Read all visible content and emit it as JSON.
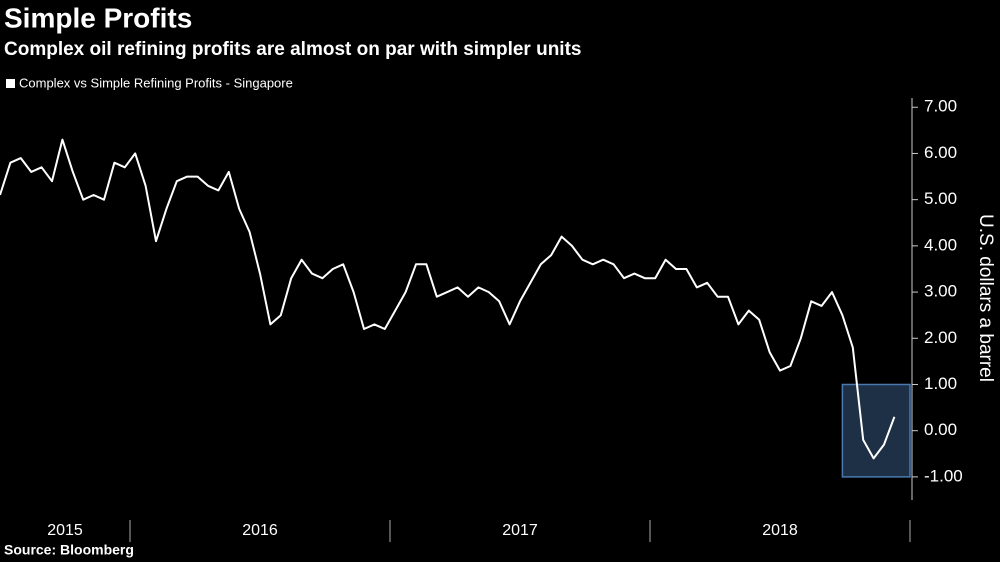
{
  "chart_data": {
    "type": "line",
    "title": "Simple Profits",
    "subtitle": "Complex oil refining profits are almost on par with simpler units",
    "y_label": "U.S. dollars a barrel",
    "source": "Source: Bloomberg",
    "x": [
      2015.5,
      2015.54,
      2015.58,
      2015.62,
      2015.66,
      2015.7,
      2015.74,
      2015.78,
      2015.82,
      2015.86,
      2015.9,
      2015.94,
      2015.98,
      2016.02,
      2016.06,
      2016.1,
      2016.14,
      2016.18,
      2016.22,
      2016.26,
      2016.3,
      2016.34,
      2016.38,
      2016.42,
      2016.46,
      2016.5,
      2016.54,
      2016.58,
      2016.62,
      2016.66,
      2016.7,
      2016.74,
      2016.78,
      2016.82,
      2016.86,
      2016.9,
      2016.94,
      2016.98,
      2017.02,
      2017.06,
      2017.1,
      2017.14,
      2017.18,
      2017.22,
      2017.26,
      2017.3,
      2017.34,
      2017.38,
      2017.42,
      2017.46,
      2017.5,
      2017.54,
      2017.58,
      2017.62,
      2017.66,
      2017.7,
      2017.74,
      2017.78,
      2017.82,
      2017.86,
      2017.9,
      2017.94,
      2017.98,
      2018.02,
      2018.06,
      2018.1,
      2018.14,
      2018.18,
      2018.22,
      2018.26,
      2018.3,
      2018.34,
      2018.38,
      2018.42,
      2018.46,
      2018.5,
      2018.54,
      2018.58,
      2018.62,
      2018.66,
      2018.7,
      2018.74,
      2018.78,
      2018.82,
      2018.86,
      2018.9,
      2018.94
    ],
    "series": [
      {
        "name": "Complex vs Simple Refining Profits - Singapore",
        "color": "#ffffff",
        "values": [
          5.1,
          5.8,
          5.9,
          5.6,
          5.7,
          5.4,
          6.3,
          5.6,
          5.0,
          5.1,
          5.0,
          5.8,
          5.7,
          6.0,
          5.3,
          4.1,
          4.8,
          5.4,
          5.5,
          5.5,
          5.3,
          5.2,
          5.6,
          4.8,
          4.3,
          3.4,
          2.3,
          2.5,
          3.3,
          3.7,
          3.4,
          3.3,
          3.5,
          3.6,
          3.0,
          2.2,
          2.3,
          2.2,
          2.6,
          3.0,
          3.6,
          3.6,
          2.9,
          3.0,
          3.1,
          2.9,
          3.1,
          3.0,
          2.8,
          2.3,
          2.8,
          3.2,
          3.6,
          3.8,
          4.2,
          4.0,
          3.7,
          3.6,
          3.7,
          3.6,
          3.3,
          3.4,
          3.3,
          3.3,
          3.7,
          3.5,
          3.5,
          3.1,
          3.2,
          2.9,
          2.9,
          2.3,
          2.6,
          2.4,
          1.7,
          1.3,
          1.4,
          2.0,
          2.8,
          2.7,
          3.0,
          2.5,
          1.8,
          -0.2,
          -0.6,
          -0.3,
          0.3
        ]
      }
    ],
    "xlim": [
      2015.5,
      2019.0
    ],
    "xticks": [
      {
        "value": 2015,
        "label": "2015"
      },
      {
        "value": 2016,
        "label": "2016"
      },
      {
        "value": 2017,
        "label": "2017"
      },
      {
        "value": 2018,
        "label": "2018"
      }
    ],
    "ylim": [
      -1.5,
      7.2
    ],
    "yticks": [
      {
        "value": -1,
        "label": "-1.00"
      },
      {
        "value": 0,
        "label": "0.00"
      },
      {
        "value": 1,
        "label": "1.00"
      },
      {
        "value": 2,
        "label": "2.00"
      },
      {
        "value": 3,
        "label": "3.00"
      },
      {
        "value": 4,
        "label": "4.00"
      },
      {
        "value": 5,
        "label": "5.00"
      },
      {
        "value": 6,
        "label": "6.00"
      },
      {
        "value": 7,
        "label": "7.00"
      }
    ],
    "highlight": {
      "x": [
        2018.74,
        2019.0
      ],
      "y": [
        -1,
        1
      ],
      "color": "#4a79b0"
    },
    "grid": false
  }
}
